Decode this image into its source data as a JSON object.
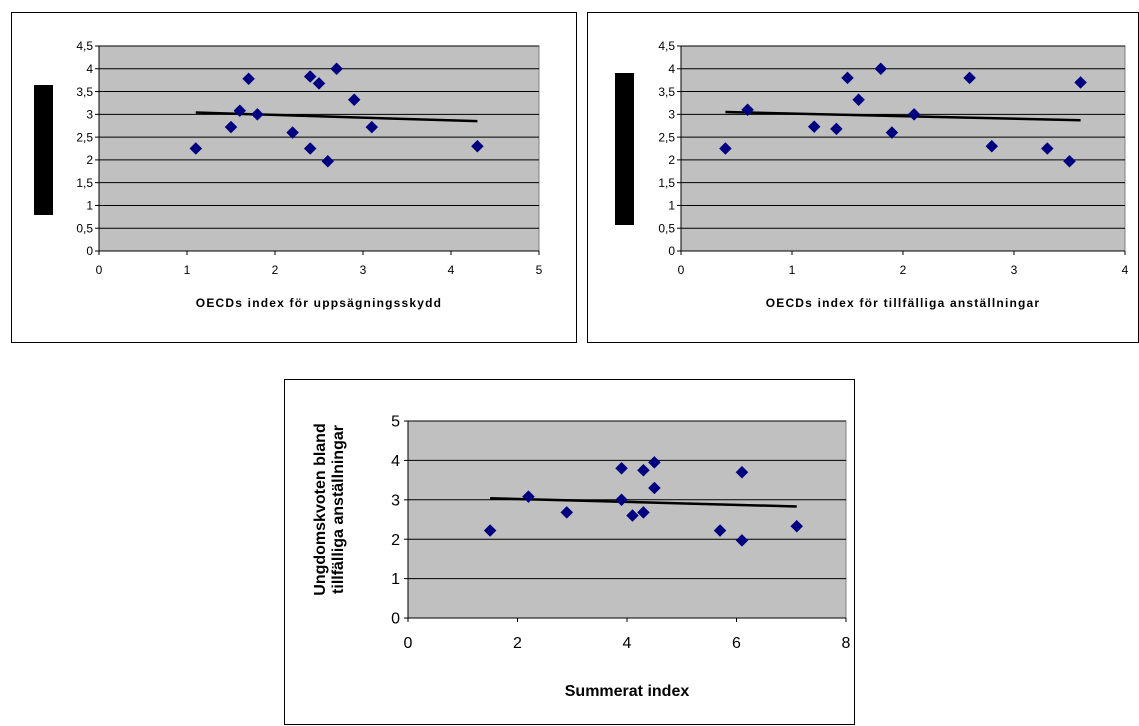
{
  "chart_data": [
    {
      "type": "scatter",
      "title": "",
      "xlabel": "OECDs index för uppsägningsskydd",
      "ylabel": "",
      "xlim": [
        0,
        5
      ],
      "ylim": [
        0,
        4.5
      ],
      "x_ticks": [
        "0",
        "1",
        "2",
        "3",
        "4",
        "5"
      ],
      "y_ticks": [
        "0",
        "0,5",
        "1",
        "1,5",
        "2",
        "2,5",
        "3",
        "3,5",
        "4",
        "4,5"
      ],
      "grid": true,
      "plot_background": "#c0c0c0",
      "marker_color": "#000080",
      "trendline": {
        "x": [
          1.1,
          4.3
        ],
        "y": [
          3.04,
          2.85
        ]
      },
      "points": [
        {
          "x": 1.1,
          "y": 2.25
        },
        {
          "x": 1.5,
          "y": 2.72
        },
        {
          "x": 1.6,
          "y": 3.08
        },
        {
          "x": 1.7,
          "y": 3.78
        },
        {
          "x": 1.8,
          "y": 3.0
        },
        {
          "x": 2.2,
          "y": 2.6
        },
        {
          "x": 2.4,
          "y": 3.83
        },
        {
          "x": 2.4,
          "y": 2.25
        },
        {
          "x": 2.5,
          "y": 3.68
        },
        {
          "x": 2.6,
          "y": 1.97
        },
        {
          "x": 2.7,
          "y": 4.0
        },
        {
          "x": 2.9,
          "y": 3.32
        },
        {
          "x": 3.1,
          "y": 2.72
        },
        {
          "x": 4.3,
          "y": 2.3
        }
      ]
    },
    {
      "type": "scatter",
      "title": "",
      "xlabel": "OECDs index för tillfälliga anställningar",
      "ylabel": "",
      "xlim": [
        0,
        4
      ],
      "ylim": [
        0,
        4.5
      ],
      "x_ticks": [
        "0",
        "1",
        "2",
        "3",
        "4"
      ],
      "y_ticks": [
        "0",
        "0,5",
        "1",
        "1,5",
        "2",
        "2,5",
        "3",
        "3,5",
        "4",
        "4,5"
      ],
      "grid": true,
      "plot_background": "#c0c0c0",
      "marker_color": "#000080",
      "trendline": {
        "x": [
          0.4,
          3.6
        ],
        "y": [
          3.05,
          2.87
        ]
      },
      "points": [
        {
          "x": 0.4,
          "y": 2.25
        },
        {
          "x": 0.6,
          "y": 3.1
        },
        {
          "x": 1.2,
          "y": 2.73
        },
        {
          "x": 1.4,
          "y": 2.68
        },
        {
          "x": 1.5,
          "y": 3.8
        },
        {
          "x": 1.6,
          "y": 3.32
        },
        {
          "x": 1.8,
          "y": 4.0
        },
        {
          "x": 1.9,
          "y": 2.6
        },
        {
          "x": 2.1,
          "y": 3.0
        },
        {
          "x": 2.6,
          "y": 3.8
        },
        {
          "x": 2.8,
          "y": 2.3
        },
        {
          "x": 3.3,
          "y": 2.25
        },
        {
          "x": 3.5,
          "y": 1.97
        },
        {
          "x": 3.6,
          "y": 3.7
        }
      ]
    },
    {
      "type": "scatter",
      "title": "",
      "xlabel": "Summerat index",
      "ylabel_line1": "Ungdomskvoten bland",
      "ylabel_line2": "tillfälliga anställningar",
      "xlim": [
        0,
        8
      ],
      "ylim": [
        0,
        5
      ],
      "x_ticks": [
        "0",
        "2",
        "4",
        "6",
        "8"
      ],
      "y_ticks": [
        "0",
        "1",
        "2",
        "3",
        "4",
        "5"
      ],
      "grid": true,
      "plot_background": "#c0c0c0",
      "marker_color": "#000080",
      "trendline": {
        "x": [
          1.5,
          7.1
        ],
        "y": [
          3.04,
          2.83
        ]
      },
      "points": [
        {
          "x": 1.5,
          "y": 2.22
        },
        {
          "x": 2.2,
          "y": 3.08
        },
        {
          "x": 2.9,
          "y": 2.68
        },
        {
          "x": 3.9,
          "y": 3.8
        },
        {
          "x": 3.9,
          "y": 3.0
        },
        {
          "x": 4.1,
          "y": 2.6
        },
        {
          "x": 4.3,
          "y": 3.75
        },
        {
          "x": 4.3,
          "y": 2.68
        },
        {
          "x": 4.5,
          "y": 3.95
        },
        {
          "x": 4.5,
          "y": 3.3
        },
        {
          "x": 5.7,
          "y": 2.22
        },
        {
          "x": 6.1,
          "y": 3.7
        },
        {
          "x": 6.1,
          "y": 1.97
        },
        {
          "x": 7.1,
          "y": 2.33
        }
      ]
    }
  ]
}
